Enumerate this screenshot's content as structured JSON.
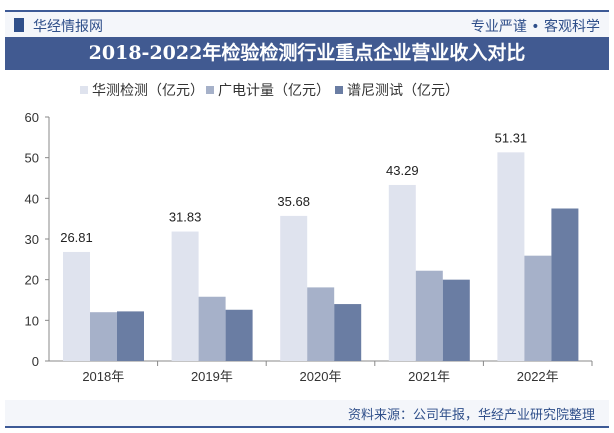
{
  "header": {
    "brand": "华经情报网",
    "slogan": "专业严谨 • 客观科学"
  },
  "source": "资料来源：公司年报，华经产业研究院整理",
  "chart_data": {
    "type": "bar",
    "title": "2018-2022年检验检测行业重点企业营业收入对比",
    "categories": [
      "2018年",
      "2019年",
      "2020年",
      "2021年",
      "2022年"
    ],
    "series": [
      {
        "name": "华测检测（亿元）",
        "color": "#dfe3ee",
        "values": [
          26.81,
          31.83,
          35.68,
          43.29,
          51.31
        ],
        "labels": true
      },
      {
        "name": "广电计量（亿元）",
        "color": "#a6b1c9",
        "values": [
          12.0,
          15.8,
          18.1,
          22.2,
          25.9
        ]
      },
      {
        "name": "谱尼测试（亿元）",
        "color": "#6a7da3",
        "values": [
          12.2,
          12.6,
          14.0,
          20.0,
          37.5
        ]
      }
    ],
    "ylim": [
      0,
      60
    ],
    "yticks": [
      0,
      10,
      20,
      30,
      40,
      50,
      60
    ],
    "grid": false,
    "legend": "top"
  }
}
